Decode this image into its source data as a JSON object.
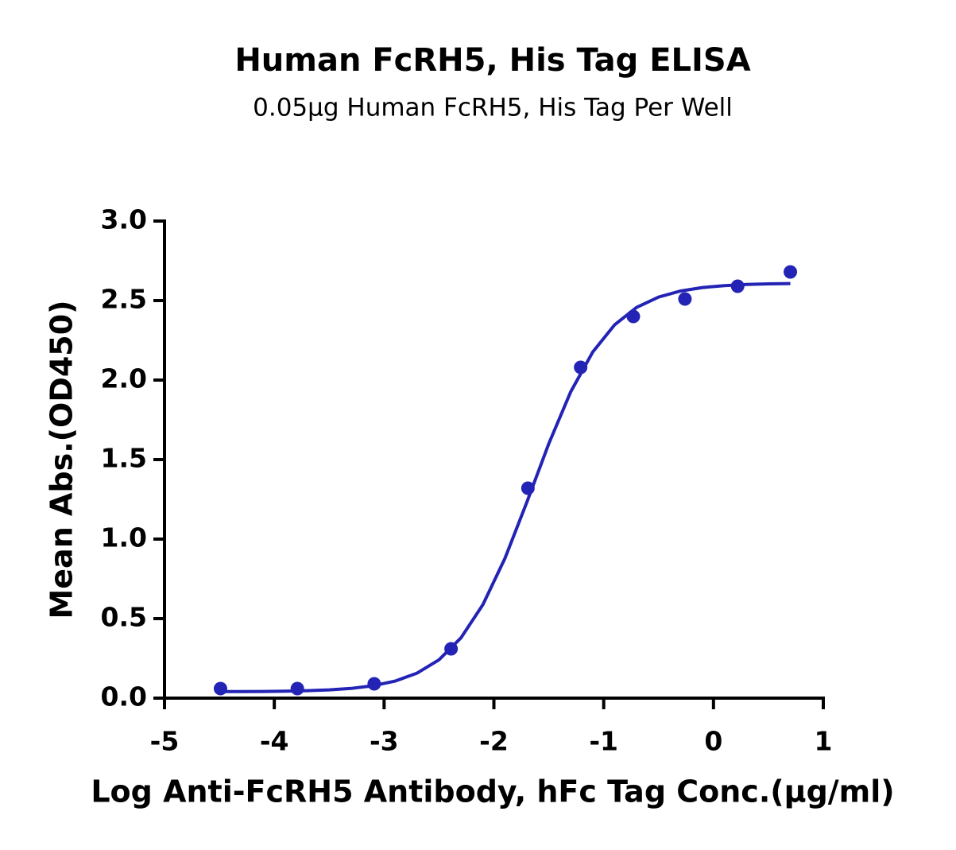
{
  "chart_data": {
    "type": "scatter",
    "title": "Human FcRH5, His Tag ELISA",
    "subtitle": "0.05μg Human FcRH5, His Tag Per Well",
    "x_label": "Log Anti-FcRH5 Antibody, hFc Tag Conc.(μg/ml)",
    "y_label": "Mean Abs.(OD450)",
    "xlim": [
      -5,
      1
    ],
    "xticks": [
      -5,
      -4,
      -3,
      -2,
      -1,
      0,
      1
    ],
    "ylim": [
      0,
      3
    ],
    "yticks": [
      {
        "value": 0,
        "label": "0.0"
      },
      0.5,
      {
        "value": 1,
        "label": "1.0"
      },
      1.5,
      {
        "value": 2,
        "label": "2.0"
      },
      2.5,
      {
        "value": 3,
        "label": "3.0"
      }
    ],
    "series": [
      {
        "type": "scatter",
        "color": "#2323b5",
        "x": [
          -4.49,
          -3.79,
          -3.09,
          -2.39,
          -1.69,
          -1.21,
          -0.73,
          -0.26,
          0.22,
          0.7
        ],
        "values": [
          0.06,
          0.06,
          0.09,
          0.31,
          1.32,
          2.08,
          2.4,
          2.51,
          2.59,
          2.68
        ]
      },
      {
        "type": "line",
        "color": "#2323b5",
        "x": [
          -4.5,
          -4.3,
          -4.1,
          -3.9,
          -3.7,
          -3.5,
          -3.3,
          -3.1,
          -2.9,
          -2.7,
          -2.5,
          -2.3,
          -2.1,
          -1.9,
          -1.7,
          -1.5,
          -1.3,
          -1.1,
          -0.9,
          -0.7,
          -0.5,
          -0.3,
          -0.1,
          0.1,
          0.3,
          0.5,
          0.7
        ],
        "values": [
          0.041,
          0.041,
          0.042,
          0.044,
          0.047,
          0.052,
          0.061,
          0.078,
          0.107,
          0.157,
          0.241,
          0.379,
          0.588,
          0.878,
          1.232,
          1.6,
          1.927,
          2.176,
          2.348,
          2.457,
          2.522,
          2.56,
          2.582,
          2.594,
          2.601,
          2.605,
          2.607
        ]
      }
    ]
  }
}
